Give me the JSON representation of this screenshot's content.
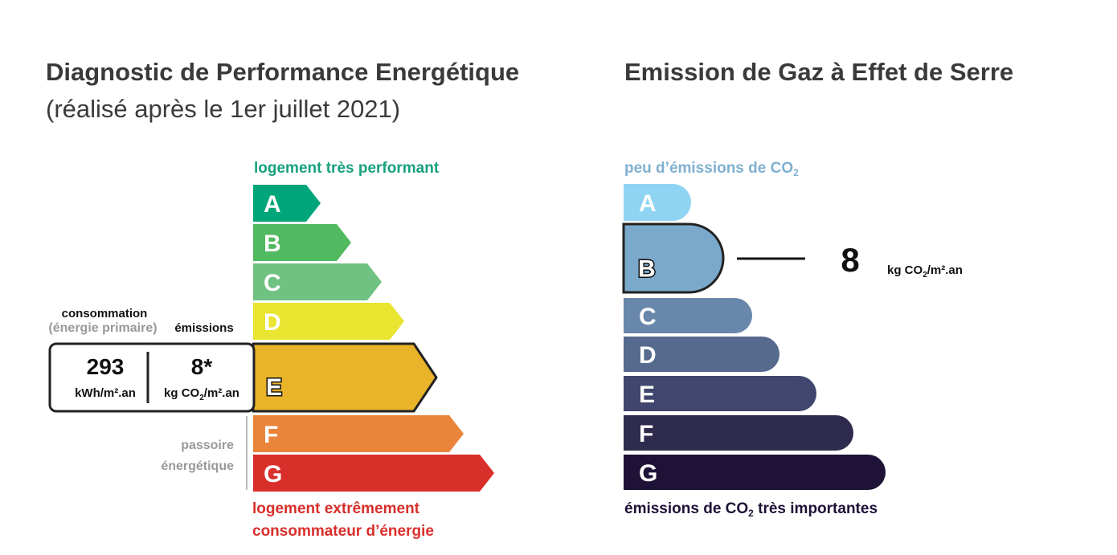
{
  "dpe": {
    "title": "Diagnostic de Performance Energétique",
    "subtitle": "(réalisé après le 1er juillet 2021)",
    "top_label": "logement très performant",
    "bottom_label_line1": "logement extrêmement",
    "bottom_label_line2": "consommateur d’énergie",
    "passoire_line1": "passoire",
    "passoire_line2": "énergétique",
    "consommation_label": "consommation",
    "energie_primaire_label": "(énergie primaire)",
    "emissions_label": "émissions",
    "consumption_value": "293",
    "consumption_unit": "kWh/m².an",
    "emissions_value": "8*",
    "emissions_unit_pre": "kg CO",
    "emissions_unit_sub": "2",
    "emissions_unit_post": "/m².an",
    "active_class": "E",
    "classes": [
      {
        "letter": "A",
        "color": "#00a57a"
      },
      {
        "letter": "B",
        "color": "#51b95f"
      },
      {
        "letter": "C",
        "color": "#6fc282"
      },
      {
        "letter": "D",
        "color": "#e9e530"
      },
      {
        "letter": "E",
        "color": "#e9b32a"
      },
      {
        "letter": "F",
        "color": "#ea843a"
      },
      {
        "letter": "G",
        "color": "#d92f2b"
      }
    ]
  },
  "ges": {
    "title": "Emission de Gaz à Effet de Serre",
    "top_label_pre": "peu d’émissions de CO",
    "top_label_sub": "2",
    "bottom_label_pre": "émissions de CO",
    "bottom_label_sub": "2",
    "bottom_label_post": " très importantes",
    "active_class": "B",
    "value": "8",
    "unit_pre": "kg CO",
    "unit_sub": "2",
    "unit_post": "/m².an",
    "classes": [
      {
        "letter": "A",
        "color": "#8fd4f3"
      },
      {
        "letter": "B",
        "color": "#7ba9cb"
      },
      {
        "letter": "C",
        "color": "#6887ab"
      },
      {
        "letter": "D",
        "color": "#566a8e"
      },
      {
        "letter": "E",
        "color": "#40466d"
      },
      {
        "letter": "F",
        "color": "#2e2b4f"
      },
      {
        "letter": "G",
        "color": "#1e1237"
      }
    ]
  },
  "colors": {
    "dpe_top_label": "#17a17e",
    "dpe_bottom_label": "#d92f2b",
    "ges_top_label": "#7fb0d0",
    "title": "#3a3a3a"
  }
}
